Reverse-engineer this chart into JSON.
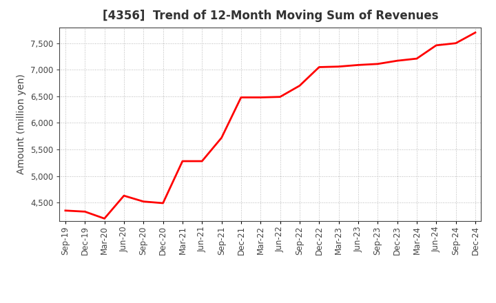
{
  "title": "[4356]  Trend of 12-Month Moving Sum of Revenues",
  "ylabel": "Amount (million yen)",
  "line_color": "#FF0000",
  "background_color": "#FFFFFF",
  "grid_color": "#AAAAAA",
  "x_labels": [
    "Sep-19",
    "Dec-19",
    "Mar-20",
    "Jun-20",
    "Sep-20",
    "Dec-20",
    "Mar-21",
    "Jun-21",
    "Sep-21",
    "Dec-21",
    "Mar-22",
    "Jun-22",
    "Sep-22",
    "Dec-22",
    "Mar-23",
    "Jun-23",
    "Sep-23",
    "Dec-23",
    "Mar-24",
    "Jun-24",
    "Sep-24",
    "Dec-24"
  ],
  "values": [
    4350,
    4330,
    4200,
    4630,
    4520,
    4490,
    5280,
    5280,
    5720,
    6480,
    6480,
    6490,
    6700,
    7050,
    7060,
    7090,
    7110,
    7170,
    7210,
    7460,
    7500,
    7700
  ],
  "ylim": [
    4150,
    7800
  ],
  "yticks": [
    4500,
    5000,
    5500,
    6000,
    6500,
    7000,
    7500
  ],
  "title_fontsize": 12,
  "ylabel_fontsize": 10,
  "tick_fontsize": 8.5,
  "title_color": "#333333",
  "tick_color": "#444444",
  "spine_color": "#444444",
  "line_width": 2.0
}
